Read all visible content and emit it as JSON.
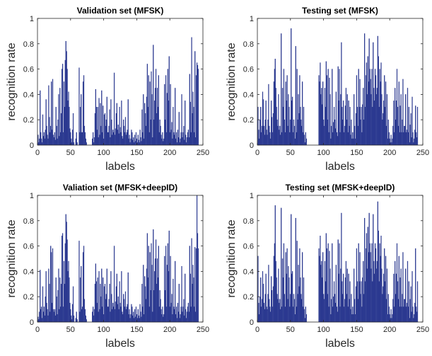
{
  "chart_data": [
    {
      "type": "bar",
      "title": "Validation set (MFSK)",
      "xlabel": "labels",
      "ylabel": "recognition rate",
      "xlim": [
        0,
        250
      ],
      "ylim": [
        0,
        1
      ],
      "xticks": [
        "0",
        "50",
        "100",
        "150",
        "200",
        "250"
      ],
      "yticks": [
        "0",
        "0.2",
        "0.4",
        "0.6",
        "0.8",
        "1"
      ],
      "bar_color": "#2b3990",
      "values": [
        0.08,
        0.02,
        0.05,
        0.43,
        0.1,
        0.05,
        0.02,
        0.24,
        0.07,
        0.1,
        0.05,
        0.12,
        0.36,
        0.15,
        0.08,
        0.05,
        0.47,
        0.22,
        0.1,
        0.15,
        0.5,
        0.12,
        0.52,
        0.08,
        0.06,
        0.1,
        0.04,
        0.3,
        0.15,
        0.05,
        0.2,
        0.4,
        0.07,
        0.45,
        0.1,
        0.25,
        0.6,
        0.64,
        0.1,
        0.5,
        0.3,
        0.67,
        0.82,
        0.74,
        0.6,
        0.35,
        0.42,
        0.3,
        0.13,
        0.1,
        0.05,
        0.02,
        0.12,
        0.25,
        0.02,
        0.0,
        0.0,
        0.05,
        0.1,
        0.02,
        0.0,
        0.0,
        0.61,
        0.1,
        0.3,
        0.4,
        0.1,
        0.1,
        0.5,
        0.55,
        0.15,
        0.1,
        0.05,
        0.02,
        0.0,
        0.0,
        0.0,
        0.0,
        0.0,
        0.0,
        0.0,
        0.0,
        0.05,
        0.1,
        0.02,
        0.06,
        0.25,
        0.44,
        0.3,
        0.12,
        0.3,
        0.06,
        0.37,
        0.08,
        0.33,
        0.15,
        0.43,
        0.1,
        0.31,
        0.05,
        0.24,
        0.25,
        0.15,
        0.2,
        0.38,
        0.1,
        0.1,
        0.15,
        0.28,
        0.06,
        0.36,
        0.2,
        0.08,
        0.12,
        0.1,
        0.57,
        0.08,
        0.13,
        0.25,
        0.33,
        0.12,
        0.16,
        0.09,
        0.3,
        0.14,
        0.1,
        0.35,
        0.07,
        0.05,
        0.2,
        0.15,
        0.1,
        0.22,
        0.08,
        0.1,
        0.12,
        0.36,
        0.05,
        0.08,
        0.02,
        0.05,
        0.12,
        0.1,
        0.04,
        0.06,
        0.02,
        0.08,
        0.03,
        0.1,
        0.05,
        0.02,
        0.08,
        0.04,
        0.02,
        0.12,
        0.06,
        0.03,
        0.28,
        0.1,
        0.4,
        0.05,
        0.33,
        0.25,
        0.15,
        0.38,
        0.64,
        0.3,
        0.55,
        0.1,
        0.5,
        0.2,
        0.58,
        0.4,
        0.06,
        0.79,
        0.2,
        0.35,
        0.45,
        0.6,
        0.25,
        0.45,
        0.3,
        0.55,
        0.1,
        0.2,
        0.15,
        0.08,
        0.05,
        0.1,
        0.03,
        0.05,
        0.48,
        0.2,
        0.55,
        0.1,
        0.41,
        0.6,
        0.35,
        0.7,
        0.1,
        0.48,
        0.12,
        0.18,
        0.05,
        0.3,
        0.1,
        0.08,
        0.45,
        0.05,
        0.1,
        0.02,
        0.12,
        0.06,
        0.26,
        0.02,
        0.05,
        0.1,
        0.4,
        0.06,
        0.1,
        0.15,
        0.04,
        0.35,
        0.08,
        0.02,
        0.06,
        0.1,
        0.12,
        0.06,
        0.56,
        0.34,
        0.1,
        0.85,
        0.25,
        0.42,
        0.3,
        0.1,
        0.74,
        0.06,
        0.55,
        0.65,
        0.63,
        0.6
      ]
    },
    {
      "type": "bar",
      "title": "Testing set (MFSK)",
      "xlabel": "labels",
      "ylabel": "recognition rate",
      "xlim": [
        0,
        250
      ],
      "ylim": [
        0,
        1
      ],
      "xticks": [
        "0",
        "50",
        "100",
        "150",
        "200",
        "250"
      ],
      "yticks": [
        "0",
        "0.2",
        "0.4",
        "0.6",
        "0.8",
        "1"
      ],
      "bar_color": "#2b3990",
      "values": [
        0.3,
        0.12,
        0.05,
        0.2,
        0.3,
        0.1,
        0.15,
        0.42,
        0.36,
        0.15,
        0.08,
        0.2,
        0.35,
        0.12,
        0.08,
        0.2,
        0.48,
        0.15,
        0.1,
        0.05,
        0.35,
        0.22,
        0.1,
        0.25,
        0.5,
        0.6,
        0.68,
        0.45,
        0.3,
        0.2,
        0.15,
        0.4,
        0.12,
        0.15,
        0.08,
        0.88,
        0.1,
        0.45,
        0.3,
        0.6,
        0.2,
        0.1,
        0.5,
        0.35,
        0.55,
        0.15,
        0.4,
        0.3,
        0.1,
        0.2,
        0.92,
        0.35,
        0.38,
        0.1,
        0.2,
        0.15,
        0.05,
        0.78,
        0.1,
        0.6,
        0.2,
        0.4,
        0.25,
        0.55,
        0.3,
        0.2,
        0.15,
        0.5,
        0.1,
        0.3,
        0.08,
        0.02,
        0.1,
        0.05,
        0.0,
        0.0,
        0.0,
        0.0,
        0.0,
        0.0,
        0.0,
        0.0,
        0.0,
        0.0,
        0.0,
        0.0,
        0.0,
        0.0,
        0.0,
        0.0,
        0.0,
        0.0,
        0.55,
        0.5,
        0.65,
        0.4,
        0.45,
        0.32,
        0.5,
        0.2,
        0.15,
        0.45,
        0.3,
        0.66,
        0.55,
        0.2,
        0.6,
        0.1,
        0.53,
        0.4,
        0.05,
        0.15,
        0.6,
        0.1,
        0.18,
        0.3,
        0.2,
        0.13,
        0.42,
        0.1,
        0.07,
        0.62,
        0.35,
        0.6,
        0.1,
        0.4,
        0.81,
        0.3,
        0.2,
        0.35,
        0.1,
        0.15,
        0.31,
        0.45,
        0.2,
        0.4,
        0.1,
        0.35,
        0.15,
        0.3,
        0.08,
        0.2,
        0.05,
        0.1,
        0.05,
        0.4,
        0.15,
        0.05,
        0.25,
        0.55,
        0.3,
        0.15,
        0.6,
        0.3,
        0.52,
        0.2,
        0.3,
        0.1,
        0.32,
        0.45,
        0.2,
        0.88,
        0.3,
        0.55,
        0.65,
        0.4,
        0.7,
        0.5,
        0.84,
        0.6,
        0.52,
        0.4,
        0.6,
        0.3,
        0.81,
        0.45,
        0.35,
        0.6,
        0.55,
        0.4,
        0.45,
        0.86,
        0.7,
        0.3,
        0.6,
        0.5,
        0.65,
        0.4,
        0.2,
        0.25,
        0.35,
        0.55,
        0.3,
        0.5,
        0.15,
        0.4,
        0.05,
        0.2,
        0.1,
        0.05,
        0.02,
        0.08,
        0.02,
        0.05,
        0.15,
        0.35,
        0.1,
        0.45,
        0.2,
        0.35,
        0.6,
        0.3,
        0.15,
        0.5,
        0.1,
        0.31,
        0.4,
        0.1,
        0.2,
        0.52,
        0.1,
        0.15,
        0.15,
        0.4,
        0.1,
        0.12,
        0.45,
        0.1,
        0.3,
        0.02,
        0.16,
        0.25,
        0.06,
        0.38,
        0.1,
        0.02,
        0.05,
        0.12,
        0.31,
        0.1,
        0.06,
        0.3
      ]
    },
    {
      "type": "bar",
      "title": "Valiation set (MFSK+deepID)",
      "xlabel": "labels",
      "ylabel": "recognition rate",
      "xlim": [
        0,
        250
      ],
      "ylim": [
        0,
        1
      ],
      "xticks": [
        "0",
        "50",
        "100",
        "150",
        "200",
        "250"
      ],
      "yticks": [
        "0",
        "0.2",
        "0.4",
        "0.6",
        "0.8",
        "1"
      ],
      "bar_color": "#2b3990",
      "values": [
        0.04,
        0.02,
        0.08,
        0.41,
        0.1,
        0.12,
        0.03,
        0.28,
        0.08,
        0.12,
        0.05,
        0.2,
        0.4,
        0.15,
        0.1,
        0.05,
        0.42,
        0.3,
        0.08,
        0.6,
        0.55,
        0.15,
        0.58,
        0.1,
        0.08,
        0.1,
        0.05,
        0.35,
        0.2,
        0.06,
        0.25,
        0.42,
        0.1,
        0.35,
        0.12,
        0.3,
        0.68,
        0.7,
        0.12,
        0.48,
        0.3,
        0.62,
        0.85,
        0.79,
        0.65,
        0.4,
        0.48,
        0.35,
        0.15,
        0.1,
        0.05,
        0.02,
        0.14,
        0.28,
        0.05,
        0.0,
        0.0,
        0.03,
        0.08,
        0.02,
        0.0,
        0.0,
        0.64,
        0.08,
        0.35,
        0.44,
        0.1,
        0.12,
        0.55,
        0.6,
        0.18,
        0.1,
        0.05,
        0.02,
        0.0,
        0.0,
        0.0,
        0.0,
        0.0,
        0.0,
        0.0,
        0.0,
        0.08,
        0.12,
        0.05,
        0.1,
        0.3,
        0.46,
        0.32,
        0.15,
        0.35,
        0.08,
        0.4,
        0.1,
        0.3,
        0.2,
        0.42,
        0.12,
        0.35,
        0.06,
        0.28,
        0.3,
        0.18,
        0.22,
        0.42,
        0.12,
        0.12,
        0.18,
        0.3,
        0.08,
        0.4,
        0.22,
        0.1,
        0.15,
        0.12,
        0.6,
        0.1,
        0.16,
        0.28,
        0.38,
        0.14,
        0.2,
        0.1,
        0.32,
        0.15,
        0.12,
        0.4,
        0.08,
        0.06,
        0.22,
        0.18,
        0.12,
        0.24,
        0.1,
        0.12,
        0.14,
        0.39,
        0.06,
        0.1,
        0.03,
        0.06,
        0.14,
        0.12,
        0.05,
        0.08,
        0.03,
        0.1,
        0.04,
        0.12,
        0.06,
        0.03,
        0.1,
        0.05,
        0.03,
        0.14,
        0.08,
        0.04,
        0.3,
        0.12,
        0.45,
        0.06,
        0.36,
        0.28,
        0.18,
        0.42,
        0.7,
        0.35,
        0.6,
        0.12,
        0.55,
        0.25,
        0.62,
        0.45,
        0.08,
        0.73,
        0.25,
        0.4,
        0.5,
        0.65,
        0.3,
        0.5,
        0.35,
        0.6,
        0.12,
        0.25,
        0.18,
        0.1,
        0.06,
        0.12,
        0.04,
        0.06,
        0.52,
        0.25,
        0.6,
        0.12,
        0.45,
        0.62,
        0.4,
        0.72,
        0.12,
        0.52,
        0.15,
        0.22,
        0.06,
        0.34,
        0.12,
        0.1,
        0.48,
        0.06,
        0.12,
        0.03,
        0.15,
        0.08,
        0.3,
        0.03,
        0.06,
        0.12,
        0.44,
        0.08,
        0.12,
        0.18,
        0.05,
        0.38,
        0.1,
        0.03,
        0.08,
        0.12,
        0.15,
        0.08,
        0.6,
        0.38,
        0.12,
        0.66,
        0.3,
        0.45,
        0.35,
        0.12,
        0.59,
        0.08,
        0.58,
        1.0,
        0.7,
        0.58
      ]
    },
    {
      "type": "bar",
      "title": "Testing set (MFSK+deepID)",
      "xlabel": "labels",
      "ylabel": "recognition rate",
      "xlim": [
        0,
        250
      ],
      "ylim": [
        0,
        1
      ],
      "xticks": [
        "0",
        "50",
        "100",
        "150",
        "200",
        "250"
      ],
      "yticks": [
        "0",
        "0.2",
        "0.4",
        "0.6",
        "0.8",
        "1"
      ],
      "bar_color": "#2b3990",
      "values": [
        0.52,
        0.15,
        0.06,
        0.2,
        0.35,
        0.12,
        0.18,
        0.4,
        0.3,
        0.15,
        0.1,
        0.22,
        0.38,
        0.12,
        0.1,
        0.22,
        0.45,
        0.18,
        0.12,
        0.08,
        0.36,
        0.25,
        0.12,
        0.28,
        0.52,
        0.62,
        0.92,
        0.48,
        0.35,
        0.22,
        0.18,
        0.42,
        0.15,
        0.18,
        0.1,
        0.9,
        0.12,
        0.5,
        0.35,
        0.62,
        0.22,
        0.12,
        0.55,
        0.38,
        0.58,
        0.18,
        0.44,
        0.35,
        0.12,
        0.22,
        0.85,
        0.38,
        0.4,
        0.12,
        0.22,
        0.18,
        0.06,
        0.82,
        0.12,
        0.64,
        0.22,
        0.45,
        0.28,
        0.58,
        0.35,
        0.22,
        0.18,
        0.55,
        0.12,
        0.35,
        0.1,
        0.03,
        0.12,
        0.06,
        0.0,
        0.0,
        0.0,
        0.0,
        0.0,
        0.0,
        0.0,
        0.0,
        0.0,
        0.0,
        0.0,
        0.0,
        0.0,
        0.0,
        0.0,
        0.0,
        0.0,
        0.0,
        0.58,
        0.52,
        0.68,
        0.45,
        0.48,
        0.35,
        0.55,
        0.22,
        0.18,
        0.48,
        0.32,
        0.7,
        0.58,
        0.22,
        0.62,
        0.12,
        0.56,
        0.42,
        0.06,
        0.18,
        0.62,
        0.12,
        0.2,
        0.32,
        0.22,
        0.15,
        0.45,
        0.12,
        0.08,
        0.65,
        0.38,
        0.62,
        0.12,
        0.42,
        0.86,
        0.32,
        0.22,
        0.38,
        0.12,
        0.18,
        0.35,
        0.48,
        0.22,
        0.42,
        0.12,
        0.38,
        0.18,
        0.32,
        0.1,
        0.22,
        0.06,
        0.12,
        0.06,
        0.42,
        0.18,
        0.06,
        0.28,
        0.58,
        0.32,
        0.18,
        0.62,
        0.32,
        0.55,
        0.22,
        0.32,
        0.12,
        0.35,
        0.48,
        0.22,
        0.82,
        0.32,
        0.58,
        0.7,
        0.42,
        0.75,
        0.55,
        0.86,
        0.62,
        0.55,
        0.42,
        0.62,
        0.32,
        0.85,
        0.48,
        0.38,
        0.62,
        0.58,
        0.42,
        0.48,
        0.95,
        0.72,
        0.32,
        0.62,
        0.52,
        0.68,
        0.42,
        0.22,
        0.28,
        0.38,
        0.58,
        0.32,
        0.52,
        0.18,
        0.42,
        0.06,
        0.22,
        0.12,
        0.06,
        0.03,
        0.1,
        0.03,
        0.06,
        0.18,
        0.38,
        0.12,
        0.48,
        0.22,
        0.38,
        0.62,
        0.32,
        0.18,
        0.52,
        0.12,
        0.35,
        0.42,
        0.12,
        0.22,
        0.55,
        0.12,
        0.18,
        0.18,
        0.42,
        0.12,
        0.15,
        0.48,
        0.12,
        0.32,
        0.03,
        0.18,
        0.28,
        0.08,
        0.4,
        0.12,
        0.03,
        0.06,
        0.15,
        0.58,
        0.12,
        0.08,
        0.32
      ]
    }
  ]
}
